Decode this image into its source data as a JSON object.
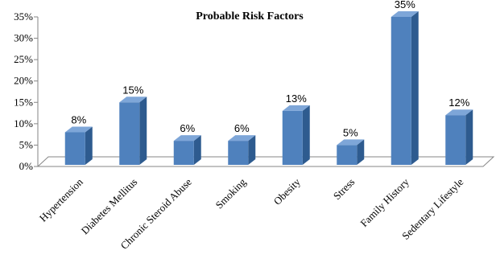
{
  "chart_data": {
    "type": "bar",
    "title": "Probable Risk Factors",
    "categories": [
      "Hypertension",
      "Diabetes Mellitus",
      "Chronic Steroid Abuse",
      "Smoking",
      "Obesity",
      "Stress",
      "Family History",
      "Sedentary Lifestyle"
    ],
    "values": [
      8,
      15,
      6,
      6,
      13,
      5,
      35,
      12
    ],
    "data_labels": [
      "8%",
      "15%",
      "6%",
      "6%",
      "13%",
      "5%",
      "35%",
      "12%"
    ],
    "y_ticks": [
      "0%",
      "5%",
      "10%",
      "15%",
      "20%",
      "25%",
      "30%",
      "35%"
    ],
    "ylim": [
      0,
      35
    ],
    "grid": false,
    "legend": "none",
    "bar_color": "#4f81bd",
    "bar_side_color": "#2e5b8f",
    "bar_top_color": "#7ea6d8",
    "floor_color": "#ffffff",
    "axis_color": "#868686"
  }
}
